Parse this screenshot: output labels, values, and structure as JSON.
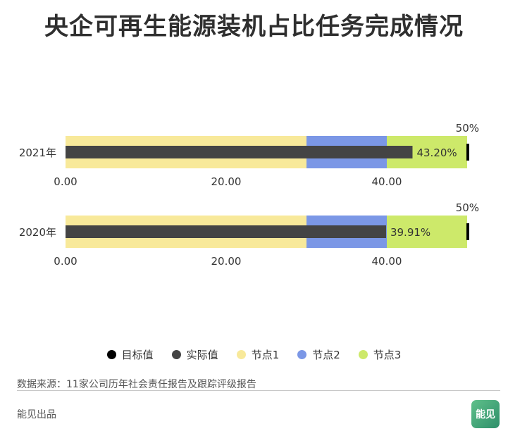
{
  "title": "央企可再生能源装机占比任务完成情况",
  "legend": [
    {
      "label": "目标值",
      "color": "#000000"
    },
    {
      "label": "实际值",
      "color": "#444444"
    },
    {
      "label": "节点1",
      "color": "#f8e99a"
    },
    {
      "label": "节点2",
      "color": "#7b97e6"
    },
    {
      "label": "节点3",
      "color": "#cde96a"
    }
  ],
  "source": "数据来源：11家公司历年社会责任报告及跟踪评级报告",
  "footer": "能见出品",
  "logo_text": "能见",
  "chart_data": {
    "type": "bullet",
    "xlim": [
      0,
      50
    ],
    "ticks": [
      0,
      20,
      40
    ],
    "tick_labels": [
      "0.00",
      "20.00",
      "40.00"
    ],
    "rows": [
      {
        "label": "2021年",
        "ranges": [
          30,
          40,
          50
        ],
        "actual": 43.2,
        "actual_label": "43.20%",
        "target": 50,
        "target_label": "50%"
      },
      {
        "label": "2020年",
        "ranges": [
          30,
          40,
          50
        ],
        "actual": 39.91,
        "actual_label": "39.91%",
        "target": 50,
        "target_label": "50%"
      }
    ]
  }
}
